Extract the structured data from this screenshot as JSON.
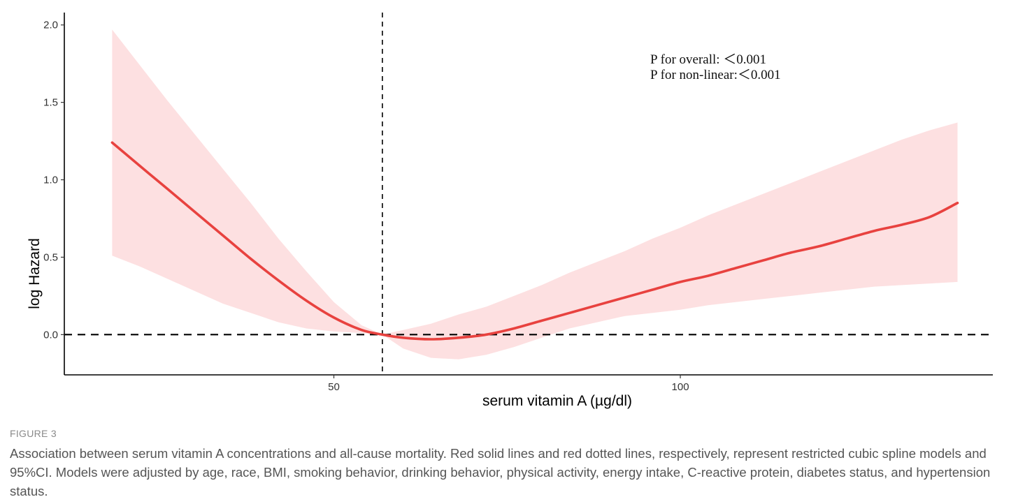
{
  "chart_data": {
    "type": "line",
    "xlabel": "serum vitamin A (µg/dl)",
    "ylabel": "log Hazard",
    "xlim": [
      11.1,
      145.1
    ],
    "ylim": [
      -0.26,
      2.08
    ],
    "x_ticks": [
      50,
      100
    ],
    "y_ticks": [
      0.0,
      0.5,
      1.0,
      1.5,
      2.0
    ],
    "y_tick_labels": [
      "0.0",
      "0.5",
      "1.0",
      "1.5",
      "2.0"
    ],
    "x_tick_labels": [
      "50",
      "100"
    ],
    "reference_lines": {
      "horizontal_y": 0.0,
      "vertical_x": 57
    },
    "series": [
      {
        "x": [
          18,
          22,
          26,
          30,
          34,
          38,
          42,
          46,
          50,
          54,
          57,
          60,
          64,
          68,
          72,
          76,
          80,
          84,
          88,
          92,
          96,
          100,
          104,
          108,
          112,
          116,
          120,
          124,
          128,
          132,
          136,
          140
        ],
        "y": [
          1.24,
          1.09,
          0.94,
          0.79,
          0.64,
          0.49,
          0.35,
          0.22,
          0.11,
          0.03,
          0.0,
          -0.02,
          -0.03,
          -0.02,
          0.0,
          0.04,
          0.09,
          0.14,
          0.19,
          0.24,
          0.29,
          0.34,
          0.38,
          0.43,
          0.48,
          0.53,
          0.57,
          0.62,
          0.67,
          0.71,
          0.76,
          0.85
        ],
        "ci_lower": [
          0.51,
          0.44,
          0.36,
          0.28,
          0.2,
          0.14,
          0.08,
          0.04,
          0.02,
          0.01,
          0.0,
          -0.09,
          -0.15,
          -0.16,
          -0.13,
          -0.08,
          -0.02,
          0.04,
          0.08,
          0.12,
          0.14,
          0.16,
          0.19,
          0.21,
          0.23,
          0.25,
          0.27,
          0.29,
          0.31,
          0.32,
          0.33,
          0.34
        ],
        "ci_upper": [
          1.97,
          1.74,
          1.51,
          1.29,
          1.07,
          0.85,
          0.62,
          0.41,
          0.21,
          0.06,
          0.0,
          0.03,
          0.07,
          0.13,
          0.18,
          0.25,
          0.32,
          0.4,
          0.47,
          0.54,
          0.62,
          0.69,
          0.77,
          0.84,
          0.91,
          0.98,
          1.05,
          1.12,
          1.19,
          1.26,
          1.32,
          1.37
        ]
      }
    ],
    "colors": {
      "line": "#e8423f",
      "band": "#fde0e1"
    },
    "annotations": [
      "P for overall: ＜0.001",
      "P for non-linear:＜0.001"
    ]
  },
  "caption": {
    "label": "FIGURE 3",
    "text": "Association between serum vitamin A concentrations and all-cause mortality. Red solid lines and red dotted lines, respectively, represent restricted cubic spline models and 95%CI. Models were adjusted by age, race, BMI, smoking behavior, drinking behavior, physical activity, energy intake, C-reactive protein, diabetes status, and hypertension status."
  }
}
